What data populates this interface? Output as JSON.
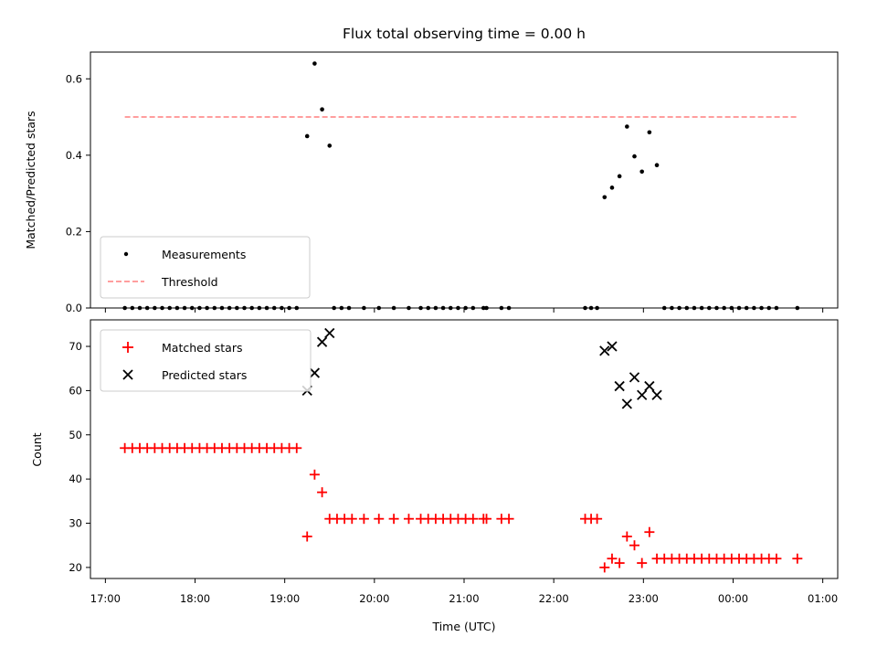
{
  "chart_data": [
    {
      "type": "scatter",
      "title": "Flux total observing time = 0.00 h",
      "xlabel": "",
      "ylabel": "Matched/Predicted stars",
      "ylim": [
        0,
        0.67
      ],
      "xlim": [
        "16:50",
        "01:10"
      ],
      "yticks": [
        "0.0",
        "0.2",
        "0.4",
        "0.6"
      ],
      "grid": false,
      "legend_position": "lower-left",
      "series": [
        {
          "name": "Measurements",
          "marker": "dot",
          "color": "#000000",
          "points": [
            [
              "17:13",
              0
            ],
            [
              "17:18",
              0
            ],
            [
              "17:23",
              0
            ],
            [
              "17:28",
              0
            ],
            [
              "17:33",
              0
            ],
            [
              "17:38",
              0
            ],
            [
              "17:43",
              0
            ],
            [
              "17:48",
              0
            ],
            [
              "17:53",
              0
            ],
            [
              "17:58",
              0
            ],
            [
              "18:03",
              0
            ],
            [
              "18:08",
              0
            ],
            [
              "18:13",
              0
            ],
            [
              "18:18",
              0
            ],
            [
              "18:23",
              0
            ],
            [
              "18:28",
              0
            ],
            [
              "18:33",
              0
            ],
            [
              "18:38",
              0
            ],
            [
              "18:43",
              0
            ],
            [
              "18:48",
              0
            ],
            [
              "18:53",
              0
            ],
            [
              "18:58",
              0
            ],
            [
              "19:03",
              0
            ],
            [
              "19:08",
              0
            ],
            [
              "19:15",
              0.45
            ],
            [
              "19:20",
              0.64
            ],
            [
              "19:25",
              0.52
            ],
            [
              "19:30",
              0.425
            ],
            [
              "19:33",
              0
            ],
            [
              "19:38",
              0
            ],
            [
              "19:43",
              0
            ],
            [
              "19:53",
              0
            ],
            [
              "20:03",
              0
            ],
            [
              "20:13",
              0
            ],
            [
              "20:23",
              0
            ],
            [
              "20:31",
              0
            ],
            [
              "20:36",
              0
            ],
            [
              "20:41",
              0
            ],
            [
              "20:46",
              0
            ],
            [
              "20:51",
              0
            ],
            [
              "20:56",
              0
            ],
            [
              "21:01",
              0
            ],
            [
              "21:06",
              0
            ],
            [
              "21:13",
              0
            ],
            [
              "21:15",
              0
            ],
            [
              "21:25",
              0
            ],
            [
              "21:30",
              0
            ],
            [
              "22:21",
              0
            ],
            [
              "22:25",
              0
            ],
            [
              "22:29",
              0
            ],
            [
              "22:34",
              0.29
            ],
            [
              "22:39",
              0.315
            ],
            [
              "22:44",
              0.345
            ],
            [
              "22:49",
              0.475
            ],
            [
              "22:54",
              0.397
            ],
            [
              "22:59",
              0.357
            ],
            [
              "23:04",
              0.46
            ],
            [
              "23:09",
              0.374
            ],
            [
              "23:14",
              0
            ],
            [
              "23:19",
              0
            ],
            [
              "23:24",
              0
            ],
            [
              "23:29",
              0
            ],
            [
              "23:34",
              0
            ],
            [
              "23:39",
              0
            ],
            [
              "23:44",
              0
            ],
            [
              "23:49",
              0
            ],
            [
              "23:54",
              0
            ],
            [
              "23:59",
              0
            ],
            [
              "00:04",
              0
            ],
            [
              "00:09",
              0
            ],
            [
              "00:14",
              0
            ],
            [
              "00:19",
              0
            ],
            [
              "00:24",
              0
            ],
            [
              "00:29",
              0
            ],
            [
              "00:43",
              0
            ]
          ]
        },
        {
          "name": "Threshold",
          "style": "dashed",
          "color": "#ff7f7f",
          "points": [
            [
              "17:13",
              0.5
            ],
            [
              "00:43",
              0.5
            ]
          ]
        }
      ]
    },
    {
      "type": "scatter",
      "title": "",
      "xlabel": "Time (UTC)",
      "ylabel": "Count",
      "ylim": [
        17.5,
        76
      ],
      "xlim": [
        "16:50",
        "01:10"
      ],
      "yticks": [
        "20",
        "30",
        "40",
        "50",
        "60",
        "70"
      ],
      "xticks": [
        "17:00",
        "18:00",
        "19:00",
        "20:00",
        "21:00",
        "22:00",
        "23:00",
        "00:00",
        "01:00"
      ],
      "grid": false,
      "legend_position": "upper-left",
      "series": [
        {
          "name": "Matched stars",
          "marker": "plus",
          "color": "#ff0000",
          "points": [
            [
              "17:13",
              47
            ],
            [
              "17:18",
              47
            ],
            [
              "17:23",
              47
            ],
            [
              "17:28",
              47
            ],
            [
              "17:33",
              47
            ],
            [
              "17:38",
              47
            ],
            [
              "17:43",
              47
            ],
            [
              "17:48",
              47
            ],
            [
              "17:53",
              47
            ],
            [
              "17:58",
              47
            ],
            [
              "18:03",
              47
            ],
            [
              "18:08",
              47
            ],
            [
              "18:13",
              47
            ],
            [
              "18:18",
              47
            ],
            [
              "18:23",
              47
            ],
            [
              "18:28",
              47
            ],
            [
              "18:33",
              47
            ],
            [
              "18:38",
              47
            ],
            [
              "18:43",
              47
            ],
            [
              "18:48",
              47
            ],
            [
              "18:53",
              47
            ],
            [
              "18:58",
              47
            ],
            [
              "19:03",
              47
            ],
            [
              "19:08",
              47
            ],
            [
              "19:15",
              27
            ],
            [
              "19:20",
              41
            ],
            [
              "19:25",
              37
            ],
            [
              "19:30",
              31
            ],
            [
              "19:35",
              31
            ],
            [
              "19:40",
              31
            ],
            [
              "19:45",
              31
            ],
            [
              "19:53",
              31
            ],
            [
              "20:03",
              31
            ],
            [
              "20:13",
              31
            ],
            [
              "20:23",
              31
            ],
            [
              "20:31",
              31
            ],
            [
              "20:36",
              31
            ],
            [
              "20:41",
              31
            ],
            [
              "20:46",
              31
            ],
            [
              "20:51",
              31
            ],
            [
              "20:56",
              31
            ],
            [
              "21:01",
              31
            ],
            [
              "21:06",
              31
            ],
            [
              "21:13",
              31
            ],
            [
              "21:15",
              31
            ],
            [
              "21:25",
              31
            ],
            [
              "21:30",
              31
            ],
            [
              "22:21",
              31
            ],
            [
              "22:25",
              31
            ],
            [
              "22:29",
              31
            ],
            [
              "22:34",
              20
            ],
            [
              "22:39",
              22
            ],
            [
              "22:44",
              21
            ],
            [
              "22:49",
              27
            ],
            [
              "22:54",
              25
            ],
            [
              "22:59",
              21
            ],
            [
              "23:04",
              28
            ],
            [
              "23:09",
              22
            ],
            [
              "23:14",
              22
            ],
            [
              "23:19",
              22
            ],
            [
              "23:24",
              22
            ],
            [
              "23:29",
              22
            ],
            [
              "23:34",
              22
            ],
            [
              "23:39",
              22
            ],
            [
              "23:44",
              22
            ],
            [
              "23:49",
              22
            ],
            [
              "23:54",
              22
            ],
            [
              "23:59",
              22
            ],
            [
              "00:04",
              22
            ],
            [
              "00:09",
              22
            ],
            [
              "00:14",
              22
            ],
            [
              "00:19",
              22
            ],
            [
              "00:24",
              22
            ],
            [
              "00:29",
              22
            ],
            [
              "00:43",
              22
            ]
          ]
        },
        {
          "name": "Predicted stars",
          "marker": "x",
          "color": "#000000",
          "points": [
            [
              "19:15",
              60
            ],
            [
              "19:20",
              64
            ],
            [
              "19:25",
              71
            ],
            [
              "19:30",
              73
            ],
            [
              "22:34",
              69
            ],
            [
              "22:39",
              70
            ],
            [
              "22:44",
              61
            ],
            [
              "22:49",
              57
            ],
            [
              "22:54",
              63
            ],
            [
              "22:59",
              59
            ],
            [
              "23:04",
              61
            ],
            [
              "23:09",
              59
            ]
          ]
        }
      ]
    }
  ]
}
